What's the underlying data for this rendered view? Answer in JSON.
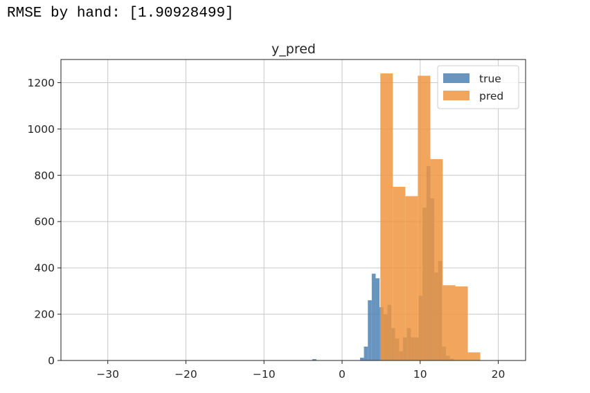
{
  "output_text": "RMSE by hand: [1.90928499]",
  "chart_data": {
    "type": "bar",
    "title": "y_pred",
    "xlim": [
      -36,
      23.5
    ],
    "ylim": [
      0,
      1300
    ],
    "xticks": [
      -30,
      -20,
      -10,
      0,
      10,
      20
    ],
    "xtick_labels": [
      "−30",
      "−20",
      "−10",
      "0",
      "10",
      "20"
    ],
    "yticks": [
      0,
      200,
      400,
      600,
      800,
      1000,
      1200
    ],
    "ytick_labels": [
      "0",
      "200",
      "400",
      "600",
      "800",
      "1000",
      "1200"
    ],
    "grid": true,
    "legend_position": "top-right",
    "series": [
      {
        "name": "true",
        "color": "#4c82b5",
        "opacity": 0.85,
        "bins": [
          {
            "x0": -3.8,
            "x1": -3.3,
            "y": 6
          },
          {
            "x0": 2.3,
            "x1": 2.8,
            "y": 12
          },
          {
            "x0": 2.8,
            "x1": 3.3,
            "y": 60
          },
          {
            "x0": 3.3,
            "x1": 3.8,
            "y": 260
          },
          {
            "x0": 3.8,
            "x1": 4.3,
            "y": 375
          },
          {
            "x0": 4.3,
            "x1": 4.8,
            "y": 355
          },
          {
            "x0": 4.8,
            "x1": 5.3,
            "y": 230
          },
          {
            "x0": 5.3,
            "x1": 5.8,
            "y": 200
          },
          {
            "x0": 5.8,
            "x1": 6.3,
            "y": 240
          },
          {
            "x0": 6.3,
            "x1": 6.8,
            "y": 140
          },
          {
            "x0": 6.8,
            "x1": 7.3,
            "y": 95
          },
          {
            "x0": 7.3,
            "x1": 7.8,
            "y": 40
          },
          {
            "x0": 7.8,
            "x1": 8.3,
            "y": 100
          },
          {
            "x0": 8.3,
            "x1": 8.8,
            "y": 140
          },
          {
            "x0": 8.8,
            "x1": 9.3,
            "y": 100
          },
          {
            "x0": 9.3,
            "x1": 9.8,
            "y": 100
          },
          {
            "x0": 9.8,
            "x1": 10.3,
            "y": 280
          },
          {
            "x0": 10.3,
            "x1": 10.8,
            "y": 660
          },
          {
            "x0": 10.8,
            "x1": 11.3,
            "y": 840
          },
          {
            "x0": 11.3,
            "x1": 11.8,
            "y": 700
          },
          {
            "x0": 11.8,
            "x1": 12.3,
            "y": 380
          },
          {
            "x0": 12.3,
            "x1": 12.8,
            "y": 430
          },
          {
            "x0": 12.8,
            "x1": 13.3,
            "y": 60
          },
          {
            "x0": 13.3,
            "x1": 13.8,
            "y": 20
          },
          {
            "x0": 13.8,
            "x1": 14.3,
            "y": 8
          }
        ]
      },
      {
        "name": "pred",
        "color": "#f0953f",
        "opacity": 0.85,
        "bins": [
          {
            "x0": 4.9,
            "x1": 6.5,
            "y": 1240
          },
          {
            "x0": 6.5,
            "x1": 8.1,
            "y": 750
          },
          {
            "x0": 8.1,
            "x1": 9.7,
            "y": 710
          },
          {
            "x0": 9.7,
            "x1": 11.3,
            "y": 1230
          },
          {
            "x0": 11.3,
            "x1": 12.9,
            "y": 870
          },
          {
            "x0": 12.9,
            "x1": 14.5,
            "y": 325
          },
          {
            "x0": 14.5,
            "x1": 16.1,
            "y": 320
          },
          {
            "x0": 16.1,
            "x1": 17.7,
            "y": 35
          }
        ]
      }
    ]
  }
}
